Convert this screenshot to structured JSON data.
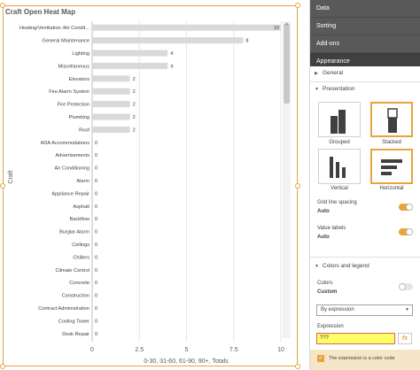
{
  "chart_panel": {
    "title": "Craft Open Heat Map",
    "scroll_up_glyph": "▲"
  },
  "chart_data": {
    "type": "bar",
    "orientation": "horizontal",
    "title": "Craft Open Heat Map",
    "ylabel": "Craft",
    "xlabel": "0-30, 31-60, 61-90, 90+, Totals",
    "xlim": [
      0,
      10
    ],
    "x_ticks": [
      "0",
      "2.5",
      "5",
      "7.5",
      "10"
    ],
    "grid": true,
    "value_labels": true,
    "categories": [
      "Heating/Ventilation /Air Condit...",
      "General Maintenance",
      "Lighting",
      "Miscellaneous",
      "Elevators",
      "Fire Alarm System",
      "Fire Protection",
      "Plumbing",
      "Roof",
      "ADA Accommodations",
      "Advertisements",
      "Air Conditioning",
      "Alarm",
      "Appliance Repair",
      "Asphalt",
      "Backflow",
      "Burglar Alarm",
      "Ceilings",
      "Chillers",
      "Climate Control",
      "Concrete",
      "Construction",
      "Contract Administration",
      "Cooling Tower",
      "Desk Repair"
    ],
    "values": [
      10,
      8,
      4,
      4,
      2,
      2,
      2,
      2,
      2,
      0,
      0,
      0,
      0,
      0,
      0,
      0,
      0,
      0,
      0,
      0,
      0,
      0,
      0,
      0,
      0
    ],
    "bar_color": "#d9d9d9"
  },
  "panel": {
    "tabs": [
      {
        "label": "Data"
      },
      {
        "label": "Sorting"
      },
      {
        "label": "Add-ons"
      },
      {
        "label": "Appearance"
      }
    ],
    "general_label": "General",
    "presentation_label": "Presentation",
    "grouped_label": "Grouped",
    "stacked_label": "Stacked",
    "vertical_label": "Vertical",
    "horizontal_label": "Horizontal",
    "grid_spacing_label": "Grid line spacing",
    "grid_spacing_value": "Auto",
    "value_labels_label": "Value labels",
    "value_labels_value": "Auto",
    "colors_legend_label": "Colors and legend",
    "colors_label": "Colors",
    "colors_value": "Custom",
    "dropdown_value": "By expression",
    "expression_label": "Expression",
    "expression_value": "???",
    "fx_label": "fx",
    "color_code_label": "The expression is a color code",
    "accent_color": "#e8a33d"
  }
}
